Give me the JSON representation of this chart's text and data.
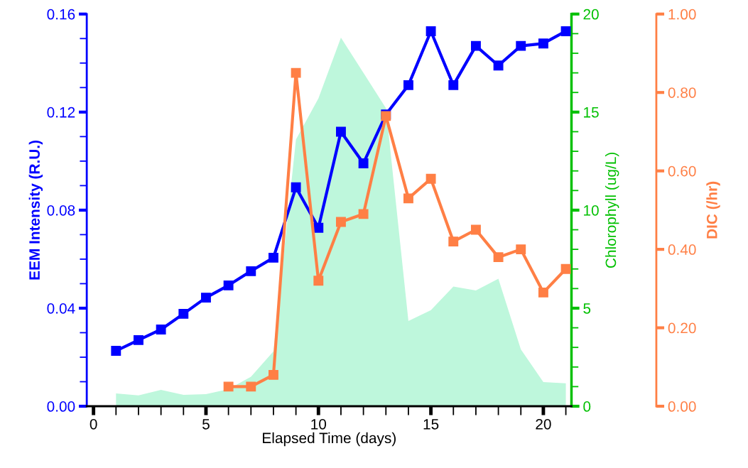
{
  "chart_data": {
    "type": "line",
    "xlabel": "Elapsed Time (days)",
    "ylabel": "EEM Intensity (R.U.)",
    "y2label": "Chlorophyll (ug/L)",
    "y3label": "DIC (/hr)",
    "x": [
      1,
      2,
      3,
      4,
      5,
      6,
      7,
      8,
      9,
      10,
      11,
      12,
      13,
      14,
      15,
      16,
      17,
      18,
      19,
      20,
      21
    ],
    "xlim": [
      -0.3,
      21.25
    ],
    "xticks": [
      0,
      {
        "value": 1,
        "label": null
      },
      {
        "value": 2,
        "label": null
      },
      {
        "value": 3,
        "label": null
      },
      {
        "value": 4,
        "label": null
      },
      5,
      {
        "value": 6,
        "label": null
      },
      {
        "value": 7,
        "label": null
      },
      {
        "value": 8,
        "label": null
      },
      {
        "value": 9,
        "label": null
      },
      10,
      {
        "value": 11,
        "label": null
      },
      {
        "value": 12,
        "label": null
      },
      {
        "value": 13,
        "label": null
      },
      {
        "value": 14,
        "label": null
      },
      15,
      {
        "value": 16,
        "label": null
      },
      {
        "value": 17,
        "label": null
      },
      {
        "value": 18,
        "label": null
      },
      {
        "value": 19,
        "label": null
      },
      20,
      {
        "value": 21,
        "label": null
      }
    ],
    "ylim": [
      0,
      0.16
    ],
    "yticks": [
      {
        "value": 0,
        "label": "0.00"
      },
      {
        "value": 0.01,
        "label": null
      },
      {
        "value": 0.02,
        "label": null
      },
      {
        "value": 0.03,
        "label": null
      },
      {
        "value": 0.04,
        "label": "0.04"
      },
      {
        "value": 0.05,
        "label": null
      },
      {
        "value": 0.06,
        "label": null
      },
      {
        "value": 0.07,
        "label": null
      },
      {
        "value": 0.08,
        "label": "0.08"
      },
      {
        "value": 0.09,
        "label": null
      },
      {
        "value": 0.1,
        "label": null
      },
      {
        "value": 0.11,
        "label": null
      },
      {
        "value": 0.12,
        "label": "0.12"
      },
      {
        "value": 0.13,
        "label": null
      },
      {
        "value": 0.14,
        "label": null
      },
      {
        "value": 0.15,
        "label": null
      },
      {
        "value": 0.16,
        "label": "0.16"
      }
    ],
    "y2lim": [
      0,
      20
    ],
    "y2ticks": [
      0,
      {
        "value": 1,
        "label": null
      },
      {
        "value": 2,
        "label": null
      },
      {
        "value": 3,
        "label": null
      },
      {
        "value": 4,
        "label": null
      },
      5,
      {
        "value": 6,
        "label": null
      },
      {
        "value": 7,
        "label": null
      },
      {
        "value": 8,
        "label": null
      },
      {
        "value": 9,
        "label": null
      },
      10,
      {
        "value": 11,
        "label": null
      },
      {
        "value": 12,
        "label": null
      },
      {
        "value": 13,
        "label": null
      },
      {
        "value": 14,
        "label": null
      },
      15,
      {
        "value": 16,
        "label": null
      },
      {
        "value": 17,
        "label": null
      },
      {
        "value": 18,
        "label": null
      },
      {
        "value": 19,
        "label": null
      },
      20
    ],
    "y3lim": [
      0,
      1
    ],
    "y3ticks": [
      {
        "value": 0,
        "label": "0.00"
      },
      {
        "value": 0.2,
        "label": "0.20"
      },
      {
        "value": 0.4,
        "label": "0.40"
      },
      {
        "value": 0.6,
        "label": "0.60"
      },
      {
        "value": 0.8,
        "label": "0.80"
      },
      {
        "value": 1,
        "label": "1.00"
      }
    ],
    "marker": "square",
    "line_style": "solid",
    "grid": false,
    "legend": false,
    "series": [
      {
        "type": "area",
        "marker": "none",
        "axis": "y2",
        "color": "#bef7dc",
        "values": [
          0.65,
          0.55,
          0.83,
          0.58,
          0.62,
          0.87,
          1.5,
          2.8,
          13.6,
          15.7,
          18.8,
          17.0,
          15.2,
          4.35,
          4.9,
          6.1,
          5.9,
          6.5,
          2.9,
          1.23,
          1.17
        ]
      },
      {
        "axis": "y",
        "color": "#0000ff",
        "values": [
          0.0226,
          0.027,
          0.0313,
          0.0377,
          0.0443,
          0.0493,
          0.0551,
          0.0606,
          0.0893,
          0.0728,
          0.112,
          0.0991,
          0.119,
          0.131,
          0.153,
          0.131,
          0.147,
          0.139,
          0.147,
          0.148,
          0.153
        ]
      },
      {
        "axis": "y3",
        "color": "#ff7f45",
        "values": [
          null,
          null,
          null,
          null,
          null,
          0.05,
          0.05,
          0.08,
          0.85,
          0.32,
          0.47,
          0.49,
          0.74,
          0.53,
          0.58,
          0.42,
          0.45,
          0.38,
          0.4,
          0.29,
          0.35
        ]
      }
    ]
  }
}
